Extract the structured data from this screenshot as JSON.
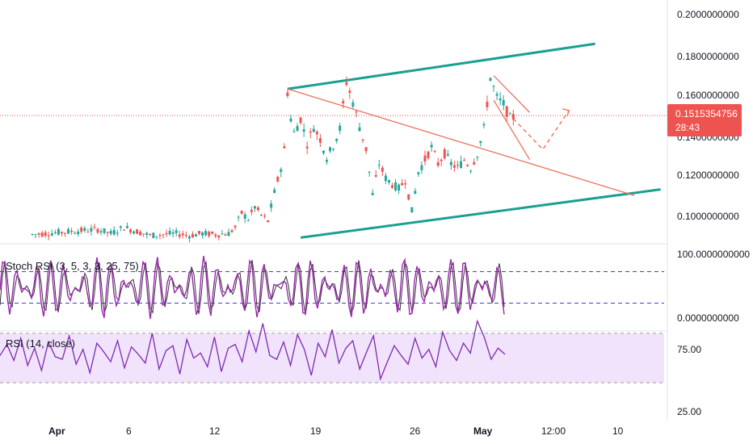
{
  "chart_data": {
    "type": "candlestick",
    "symbol_price": {
      "last_price": "0.1515354756",
      "countdown": "28:43",
      "last_value": 0.1515354756,
      "up_color": "#26a69a",
      "down_color": "#ef5350"
    },
    "price_axis": {
      "ticks": [
        "0.2000000000",
        "0.1800000000",
        "0.1600000000",
        "0.1400000000",
        "0.1200000000",
        "0.1000000000"
      ],
      "range": [
        0.092,
        0.2
      ]
    },
    "x_axis": {
      "ticks": [
        {
          "label": "Apr",
          "bold": true
        },
        {
          "label": "6",
          "bold": false
        },
        {
          "label": "12",
          "bold": false
        },
        {
          "label": "19",
          "bold": false
        },
        {
          "label": "26",
          "bold": false
        },
        {
          "label": "May",
          "bold": true
        },
        {
          "label": "12:00",
          "bold": false
        },
        {
          "label": "10",
          "bold": false
        }
      ]
    },
    "price_series": [
      {
        "t": 0,
        "v": 0.0935
      },
      {
        "t": 10,
        "v": 0.096
      },
      {
        "t": 12,
        "v": 0.094
      },
      {
        "t": 14,
        "v": 0.097
      },
      {
        "t": 16,
        "v": 0.095
      },
      {
        "t": 18,
        "v": 0.093
      },
      {
        "t": 20,
        "v": 0.0935
      },
      {
        "t": 22,
        "v": 0.094
      },
      {
        "t": 24,
        "v": 0.093
      },
      {
        "t": 26,
        "v": 0.094
      },
      {
        "t": 28,
        "v": 0.0935
      },
      {
        "t": 30,
        "v": 0.094
      },
      {
        "t": 31,
        "v": 0.097
      },
      {
        "t": 32,
        "v": 0.104
      },
      {
        "t": 33,
        "v": 0.101
      },
      {
        "t": 34,
        "v": 0.107
      },
      {
        "t": 35,
        "v": 0.103
      },
      {
        "t": 36,
        "v": 0.1
      },
      {
        "t": 37,
        "v": 0.114
      },
      {
        "t": 38,
        "v": 0.126
      },
      {
        "t": 38.5,
        "v": 0.135
      },
      {
        "t": 39,
        "v": 0.163
      },
      {
        "t": 39.5,
        "v": 0.15
      },
      {
        "t": 40,
        "v": 0.143
      },
      {
        "t": 41,
        "v": 0.15
      },
      {
        "t": 42,
        "v": 0.138
      },
      {
        "t": 43,
        "v": 0.146
      },
      {
        "t": 44,
        "v": 0.14
      },
      {
        "t": 45,
        "v": 0.131
      },
      {
        "t": 46,
        "v": 0.137
      },
      {
        "t": 47,
        "v": 0.145
      },
      {
        "t": 48,
        "v": 0.168
      },
      {
        "t": 49,
        "v": 0.158
      },
      {
        "t": 50,
        "v": 0.146
      },
      {
        "t": 51,
        "v": 0.135
      },
      {
        "t": 52,
        "v": 0.113
      },
      {
        "t": 53,
        "v": 0.128
      },
      {
        "t": 54,
        "v": 0.121
      },
      {
        "t": 55,
        "v": 0.118
      },
      {
        "t": 56,
        "v": 0.116
      },
      {
        "t": 57,
        "v": 0.12
      },
      {
        "t": 58,
        "v": 0.105
      },
      {
        "t": 59,
        "v": 0.124
      },
      {
        "t": 60,
        "v": 0.13
      },
      {
        "t": 61,
        "v": 0.136
      },
      {
        "t": 62,
        "v": 0.128
      },
      {
        "t": 63,
        "v": 0.133
      },
      {
        "t": 64,
        "v": 0.128
      },
      {
        "t": 65,
        "v": 0.126
      },
      {
        "t": 66,
        "v": 0.13
      },
      {
        "t": 67,
        "v": 0.126
      },
      {
        "t": 68,
        "v": 0.133
      },
      {
        "t": 69,
        "v": 0.145
      },
      {
        "t": 70,
        "v": 0.17
      },
      {
        "t": 71,
        "v": 0.16
      },
      {
        "t": 72,
        "v": 0.157
      },
      {
        "t": 73,
        "v": 0.15
      },
      {
        "t": 74,
        "v": 0.1515
      }
    ],
    "drawings": {
      "upper_channel": {
        "from": {
          "t": 39,
          "v": 0.1645
        },
        "to": {
          "t": 86,
          "v": 0.1865
        },
        "color": "#18a091"
      },
      "lower_channel": {
        "from": {
          "t": 41,
          "v": 0.092
        },
        "to": {
          "t": 96,
          "v": 0.1155
        },
        "color": "#18a091"
      },
      "descending_line": {
        "from": {
          "t": 39,
          "v": 0.1645
        },
        "to": {
          "t": 92,
          "v": 0.1125
        },
        "color": "#f07060"
      },
      "flag_upper": {
        "from": {
          "t": 70.5,
          "v": 0.171
        },
        "to": {
          "t": 76,
          "v": 0.153
        },
        "color": "#f07060"
      },
      "flag_lower": {
        "from": {
          "t": 70.5,
          "v": 0.159
        },
        "to": {
          "t": 76,
          "v": 0.13
        },
        "color": "#f07060"
      },
      "projection": [
        {
          "t": 73.5,
          "v": 0.15
        },
        {
          "t": 78,
          "v": 0.135
        },
        {
          "t": 82,
          "v": 0.154
        }
      ],
      "price_line_color": "#ef5350"
    },
    "stoch_rsi": {
      "label": "Stoch RSI (3, 5, 3, 3, 25, 75)",
      "axis_ticks": [
        "100.0000000000",
        "0.0000000000"
      ],
      "upper_band": 75,
      "lower_band": 25,
      "k_color": "#9c27b0",
      "d_color": "#333333"
    },
    "rsi": {
      "label": "RSI (14, close)",
      "axis_ticks": [
        "75.00",
        "25.00"
      ],
      "upper_band": 70,
      "lower_band": 30,
      "line_color": "#7e2ab3",
      "band_fill": "#f1e3fb",
      "values": [
        52,
        61,
        48,
        66,
        44,
        58,
        40,
        63,
        51,
        49,
        68,
        45,
        57,
        38,
        62,
        55,
        47,
        64,
        42,
        59,
        53,
        46,
        70,
        41,
        56,
        60,
        37,
        65,
        50,
        54,
        43,
        67,
        39,
        58,
        61,
        47,
        72,
        55,
        78,
        52,
        49,
        63,
        44,
        69,
        57,
        36,
        62,
        51,
        73,
        46,
        58,
        64,
        41,
        55,
        68,
        33,
        47,
        60,
        52,
        45,
        66,
        50,
        57,
        43,
        71,
        56,
        48,
        62,
        54,
        80,
        67,
        49,
        58,
        53
      ]
    }
  }
}
